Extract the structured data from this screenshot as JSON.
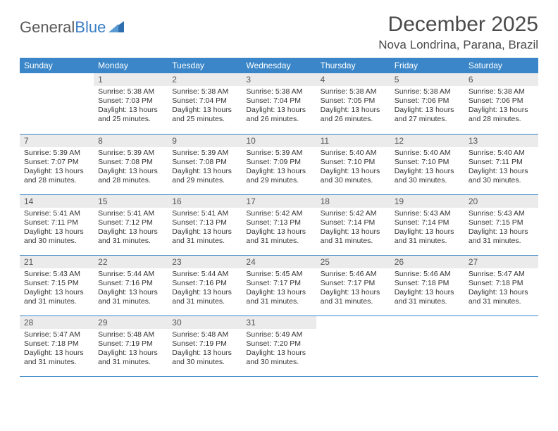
{
  "logo": {
    "text1": "General",
    "text2": "Blue"
  },
  "title": "December 2025",
  "location": "Nova Londrina, Parana, Brazil",
  "colors": {
    "header_bg": "#3a86c8",
    "header_text": "#ffffff",
    "daynum_bg": "#ebebeb",
    "text": "#333333",
    "rule": "#3a86c8"
  },
  "weekdays": [
    "Sunday",
    "Monday",
    "Tuesday",
    "Wednesday",
    "Thursday",
    "Friday",
    "Saturday"
  ],
  "weeks": [
    [
      {
        "n": "",
        "sr": "",
        "ss": "",
        "dl": ""
      },
      {
        "n": "1",
        "sr": "Sunrise: 5:38 AM",
        "ss": "Sunset: 7:03 PM",
        "dl": "Daylight: 13 hours and 25 minutes."
      },
      {
        "n": "2",
        "sr": "Sunrise: 5:38 AM",
        "ss": "Sunset: 7:04 PM",
        "dl": "Daylight: 13 hours and 25 minutes."
      },
      {
        "n": "3",
        "sr": "Sunrise: 5:38 AM",
        "ss": "Sunset: 7:04 PM",
        "dl": "Daylight: 13 hours and 26 minutes."
      },
      {
        "n": "4",
        "sr": "Sunrise: 5:38 AM",
        "ss": "Sunset: 7:05 PM",
        "dl": "Daylight: 13 hours and 26 minutes."
      },
      {
        "n": "5",
        "sr": "Sunrise: 5:38 AM",
        "ss": "Sunset: 7:06 PM",
        "dl": "Daylight: 13 hours and 27 minutes."
      },
      {
        "n": "6",
        "sr": "Sunrise: 5:38 AM",
        "ss": "Sunset: 7:06 PM",
        "dl": "Daylight: 13 hours and 28 minutes."
      }
    ],
    [
      {
        "n": "7",
        "sr": "Sunrise: 5:39 AM",
        "ss": "Sunset: 7:07 PM",
        "dl": "Daylight: 13 hours and 28 minutes."
      },
      {
        "n": "8",
        "sr": "Sunrise: 5:39 AM",
        "ss": "Sunset: 7:08 PM",
        "dl": "Daylight: 13 hours and 28 minutes."
      },
      {
        "n": "9",
        "sr": "Sunrise: 5:39 AM",
        "ss": "Sunset: 7:08 PM",
        "dl": "Daylight: 13 hours and 29 minutes."
      },
      {
        "n": "10",
        "sr": "Sunrise: 5:39 AM",
        "ss": "Sunset: 7:09 PM",
        "dl": "Daylight: 13 hours and 29 minutes."
      },
      {
        "n": "11",
        "sr": "Sunrise: 5:40 AM",
        "ss": "Sunset: 7:10 PM",
        "dl": "Daylight: 13 hours and 30 minutes."
      },
      {
        "n": "12",
        "sr": "Sunrise: 5:40 AM",
        "ss": "Sunset: 7:10 PM",
        "dl": "Daylight: 13 hours and 30 minutes."
      },
      {
        "n": "13",
        "sr": "Sunrise: 5:40 AM",
        "ss": "Sunset: 7:11 PM",
        "dl": "Daylight: 13 hours and 30 minutes."
      }
    ],
    [
      {
        "n": "14",
        "sr": "Sunrise: 5:41 AM",
        "ss": "Sunset: 7:11 PM",
        "dl": "Daylight: 13 hours and 30 minutes."
      },
      {
        "n": "15",
        "sr": "Sunrise: 5:41 AM",
        "ss": "Sunset: 7:12 PM",
        "dl": "Daylight: 13 hours and 31 minutes."
      },
      {
        "n": "16",
        "sr": "Sunrise: 5:41 AM",
        "ss": "Sunset: 7:13 PM",
        "dl": "Daylight: 13 hours and 31 minutes."
      },
      {
        "n": "17",
        "sr": "Sunrise: 5:42 AM",
        "ss": "Sunset: 7:13 PM",
        "dl": "Daylight: 13 hours and 31 minutes."
      },
      {
        "n": "18",
        "sr": "Sunrise: 5:42 AM",
        "ss": "Sunset: 7:14 PM",
        "dl": "Daylight: 13 hours and 31 minutes."
      },
      {
        "n": "19",
        "sr": "Sunrise: 5:43 AM",
        "ss": "Sunset: 7:14 PM",
        "dl": "Daylight: 13 hours and 31 minutes."
      },
      {
        "n": "20",
        "sr": "Sunrise: 5:43 AM",
        "ss": "Sunset: 7:15 PM",
        "dl": "Daylight: 13 hours and 31 minutes."
      }
    ],
    [
      {
        "n": "21",
        "sr": "Sunrise: 5:43 AM",
        "ss": "Sunset: 7:15 PM",
        "dl": "Daylight: 13 hours and 31 minutes."
      },
      {
        "n": "22",
        "sr": "Sunrise: 5:44 AM",
        "ss": "Sunset: 7:16 PM",
        "dl": "Daylight: 13 hours and 31 minutes."
      },
      {
        "n": "23",
        "sr": "Sunrise: 5:44 AM",
        "ss": "Sunset: 7:16 PM",
        "dl": "Daylight: 13 hours and 31 minutes."
      },
      {
        "n": "24",
        "sr": "Sunrise: 5:45 AM",
        "ss": "Sunset: 7:17 PM",
        "dl": "Daylight: 13 hours and 31 minutes."
      },
      {
        "n": "25",
        "sr": "Sunrise: 5:46 AM",
        "ss": "Sunset: 7:17 PM",
        "dl": "Daylight: 13 hours and 31 minutes."
      },
      {
        "n": "26",
        "sr": "Sunrise: 5:46 AM",
        "ss": "Sunset: 7:18 PM",
        "dl": "Daylight: 13 hours and 31 minutes."
      },
      {
        "n": "27",
        "sr": "Sunrise: 5:47 AM",
        "ss": "Sunset: 7:18 PM",
        "dl": "Daylight: 13 hours and 31 minutes."
      }
    ],
    [
      {
        "n": "28",
        "sr": "Sunrise: 5:47 AM",
        "ss": "Sunset: 7:18 PM",
        "dl": "Daylight: 13 hours and 31 minutes."
      },
      {
        "n": "29",
        "sr": "Sunrise: 5:48 AM",
        "ss": "Sunset: 7:19 PM",
        "dl": "Daylight: 13 hours and 31 minutes."
      },
      {
        "n": "30",
        "sr": "Sunrise: 5:48 AM",
        "ss": "Sunset: 7:19 PM",
        "dl": "Daylight: 13 hours and 30 minutes."
      },
      {
        "n": "31",
        "sr": "Sunrise: 5:49 AM",
        "ss": "Sunset: 7:20 PM",
        "dl": "Daylight: 13 hours and 30 minutes."
      },
      {
        "n": "",
        "sr": "",
        "ss": "",
        "dl": ""
      },
      {
        "n": "",
        "sr": "",
        "ss": "",
        "dl": ""
      },
      {
        "n": "",
        "sr": "",
        "ss": "",
        "dl": ""
      }
    ]
  ]
}
